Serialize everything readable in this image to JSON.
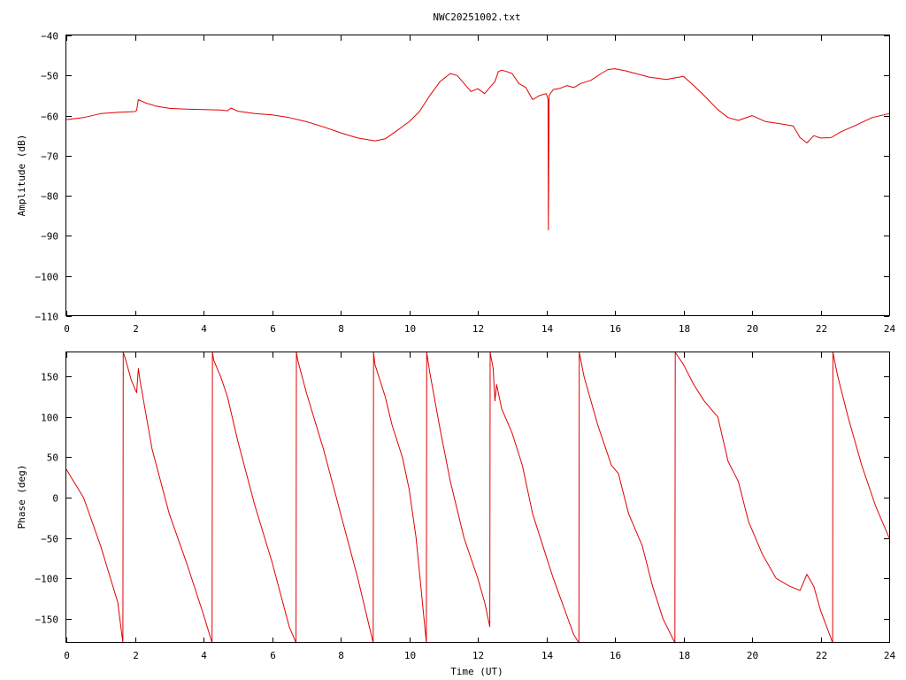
{
  "title": "NWC20251002.txt",
  "chart_data": [
    {
      "type": "line",
      "ylabel": "Amplitude (dB)",
      "xlabel": "",
      "xlim": [
        0,
        24
      ],
      "ylim": [
        -110,
        -40
      ],
      "x_ticks": [
        0,
        2,
        4,
        6,
        8,
        10,
        12,
        14,
        16,
        18,
        20,
        22,
        24
      ],
      "y_ticks": [
        -110,
        -100,
        -90,
        -80,
        -70,
        -60,
        -50,
        -40
      ],
      "grid": false,
      "color": "#e00000",
      "series": [
        {
          "x": [
            0,
            0.5,
            1,
            1.5,
            2,
            2.05,
            2.1,
            2.3,
            2.6,
            3,
            3.5,
            4,
            4.5,
            4.7,
            4.8,
            5,
            5.5,
            6,
            6.5,
            7,
            7.5,
            8,
            8.5,
            9,
            9.3,
            9.6,
            10,
            10.3,
            10.6,
            10.9,
            11.2,
            11.4,
            11.6,
            11.8,
            12,
            12.2,
            12.4,
            12.5,
            12.6,
            12.7,
            12.8,
            13,
            13.2,
            13.4,
            13.6,
            13.8,
            14,
            14.05,
            14.06,
            14.08,
            14.2,
            14.4,
            14.6,
            14.8,
            15,
            15.3,
            15.6,
            15.8,
            16,
            16.3,
            16.6,
            17,
            17.5,
            17.8,
            18,
            18.3,
            18.6,
            19,
            19.3,
            19.6,
            20,
            20.4,
            20.8,
            21.2,
            21.4,
            21.6,
            21.8,
            22,
            22.3,
            22.6,
            23,
            23.5,
            24
          ],
          "y": [
            -61,
            -60.5,
            -59.5,
            -59.2,
            -59,
            -58.7,
            -56,
            -56.8,
            -57.6,
            -58.2,
            -58.4,
            -58.5,
            -58.6,
            -58.8,
            -58.1,
            -58.9,
            -59.5,
            -59.8,
            -60.5,
            -61.5,
            -62.8,
            -64.3,
            -65.6,
            -66.3,
            -65.8,
            -64,
            -61.5,
            -59,
            -55,
            -51.5,
            -49.5,
            -50,
            -52,
            -54,
            -53.3,
            -54.5,
            -52.5,
            -51.5,
            -49,
            -48.7,
            -48.9,
            -49.5,
            -52,
            -53,
            -56,
            -55,
            -54.5,
            -56,
            -88.5,
            -55,
            -53.5,
            -53.2,
            -52.5,
            -53,
            -52,
            -51.2,
            -49.5,
            -48.5,
            -48.3,
            -48.8,
            -49.5,
            -50.4,
            -51,
            -50.5,
            -50.2,
            -52.5,
            -55,
            -58.5,
            -60.5,
            -61.2,
            -60,
            -61.5,
            -62,
            -62.6,
            -65.5,
            -66.8,
            -65,
            -65.6,
            -65.5,
            -64,
            -62.5,
            -60.5,
            -59.5
          ]
        }
      ]
    },
    {
      "type": "line",
      "ylabel": "Phase (deg)",
      "xlabel": "Time (UT)",
      "xlim": [
        0,
        24
      ],
      "ylim": [
        -180,
        180
      ],
      "x_ticks": [
        0,
        2,
        4,
        6,
        8,
        10,
        12,
        14,
        16,
        18,
        20,
        22,
        24
      ],
      "y_ticks": [
        -150,
        -100,
        -50,
        0,
        50,
        100,
        150
      ],
      "grid": false,
      "color": "#e00000",
      "series": [
        {
          "x": [
            0,
            0.5,
            1,
            1.5,
            1.65,
            1.66,
            1.7,
            1.9,
            2.05,
            2.1,
            2.15,
            2.5,
            3,
            3.5,
            4,
            4.25,
            4.26,
            4.3,
            4.5,
            4.7,
            5,
            5.5,
            6,
            6.5,
            6.7,
            6.71,
            6.75,
            7,
            7.5,
            8,
            8.5,
            8.95,
            8.96,
            9,
            9.3,
            9.5,
            9.8,
            10,
            10.2,
            10.5,
            10.51,
            10.6,
            10.9,
            11.2,
            11.6,
            12,
            12.2,
            12.35,
            12.36,
            12.45,
            12.5,
            12.55,
            12.7,
            13,
            13.3,
            13.6,
            13.9,
            14.2,
            14.5,
            14.8,
            14.95,
            14.96,
            15.1,
            15.5,
            15.9,
            16.1,
            16.4,
            16.8,
            17.1,
            17.4,
            17.75,
            17.76,
            18,
            18.3,
            18.6,
            19,
            19.3,
            19.6,
            19.9,
            20.3,
            20.7,
            21.1,
            21.4,
            21.6,
            21.8,
            22,
            22.35,
            22.36,
            22.5,
            22.8,
            23.2,
            23.6,
            24
          ],
          "y": [
            35,
            0,
            -60,
            -130,
            -180,
            180,
            175,
            145,
            130,
            160,
            145,
            60,
            -20,
            -80,
            -145,
            -180,
            180,
            170,
            150,
            125,
            70,
            -10,
            -80,
            -160,
            -180,
            180,
            170,
            130,
            60,
            -20,
            -100,
            -180,
            180,
            165,
            125,
            90,
            50,
            10,
            -50,
            -180,
            180,
            155,
            85,
            20,
            -50,
            -100,
            -130,
            -160,
            180,
            160,
            120,
            140,
            110,
            80,
            40,
            -20,
            -60,
            -100,
            -135,
            -170,
            -180,
            180,
            150,
            90,
            40,
            30,
            -20,
            -60,
            -110,
            -150,
            -180,
            180,
            165,
            140,
            120,
            100,
            45,
            20,
            -30,
            -70,
            -100,
            -110,
            -115,
            -95,
            -110,
            -140,
            -180,
            180,
            150,
            100,
            40,
            -10,
            -50
          ]
        }
      ]
    }
  ]
}
